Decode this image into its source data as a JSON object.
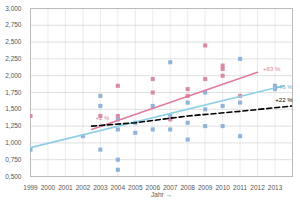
{
  "chart_data": {
    "type": "scatter",
    "x_label": "Jahr",
    "xlim": [
      1999,
      2014
    ],
    "xticks": [
      1999,
      2000,
      2001,
      2002,
      2003,
      2004,
      2005,
      2006,
      2007,
      2008,
      2009,
      2010,
      2011,
      2012,
      2013
    ],
    "ylim": [
      0.5,
      3.0
    ],
    "yticks": [
      {
        "value": 0.5,
        "label": "0,500"
      },
      {
        "value": 0.75,
        "label": "0,750"
      },
      {
        "value": 1.0,
        "label": "1,000"
      },
      {
        "value": 1.25,
        "label": "1,250"
      },
      {
        "value": 1.5,
        "label": "1,500"
      },
      {
        "value": 1.75,
        "label": "1,750"
      },
      {
        "value": 2.0,
        "label": "2,000"
      },
      {
        "value": 2.25,
        "label": "2,250"
      },
      {
        "value": 2.5,
        "label": "2,500"
      },
      {
        "value": 2.75,
        "label": "2,750"
      },
      {
        "value": 3.0,
        "label": "3,000"
      }
    ],
    "grid": true,
    "series": [
      {
        "type": "scatter",
        "marker": "square",
        "color": "#8fb3d9",
        "x": [
          1999,
          2002,
          2003,
          2003,
          2003,
          2004,
          2004,
          2004,
          2004,
          2005,
          2005,
          2006,
          2006,
          2007,
          2007,
          2007,
          2008,
          2008,
          2008,
          2009,
          2009,
          2009,
          2010,
          2010,
          2011,
          2011,
          2011,
          2013,
          2013
        ],
        "values": [
          0.9,
          1.1,
          0.9,
          1.55,
          1.7,
          0.6,
          0.75,
          1.2,
          1.35,
          1.15,
          1.3,
          1.2,
          1.55,
          1.2,
          1.4,
          2.2,
          1.05,
          1.3,
          1.6,
          1.25,
          1.5,
          1.75,
          1.25,
          1.55,
          1.1,
          1.6,
          2.25,
          1.8,
          1.85
        ]
      },
      {
        "type": "scatter",
        "marker": "square",
        "color": "#d98aa8",
        "x": [
          1999,
          2003,
          2004,
          2004,
          2006,
          2006,
          2007,
          2008,
          2008,
          2009,
          2009,
          2010,
          2010,
          2010,
          2011
        ],
        "values": [
          1.4,
          1.4,
          1.85,
          1.4,
          1.95,
          1.75,
          1.35,
          1.7,
          1.8,
          1.95,
          2.45,
          2.0,
          2.1,
          2.15,
          1.7
        ]
      },
      {
        "type": "line",
        "line_style": "solid",
        "color": "#e07ba0",
        "x": [
          2002.5,
          2012
        ],
        "values": [
          1.2,
          2.05
        ]
      },
      {
        "type": "line",
        "line_style": "solid",
        "color": "#8ecfe6",
        "x": [
          1999,
          2013.5
        ],
        "values": [
          0.93,
          1.85
        ]
      },
      {
        "type": "line",
        "line_style": "dashed",
        "color": "#000000",
        "x": [
          2002.5,
          2005,
          2008,
          2011,
          2014
        ],
        "values": [
          1.25,
          1.3,
          1.4,
          1.47,
          1.55
        ]
      }
    ],
    "annotations": [
      {
        "text": "+63 %",
        "x": 2012.2,
        "y": 2.05,
        "color": "#e07ba0"
      },
      {
        "text": "+46 %",
        "x": 2012.9,
        "y": 1.78,
        "color": "#5fb3d6"
      },
      {
        "text": "+22 %",
        "x": 2012.9,
        "y": 1.6,
        "color": "#000000"
      },
      {
        "text": "+2 %",
        "x": 2002.6,
        "y": 1.33,
        "color": "#e07ba0"
      }
    ]
  }
}
